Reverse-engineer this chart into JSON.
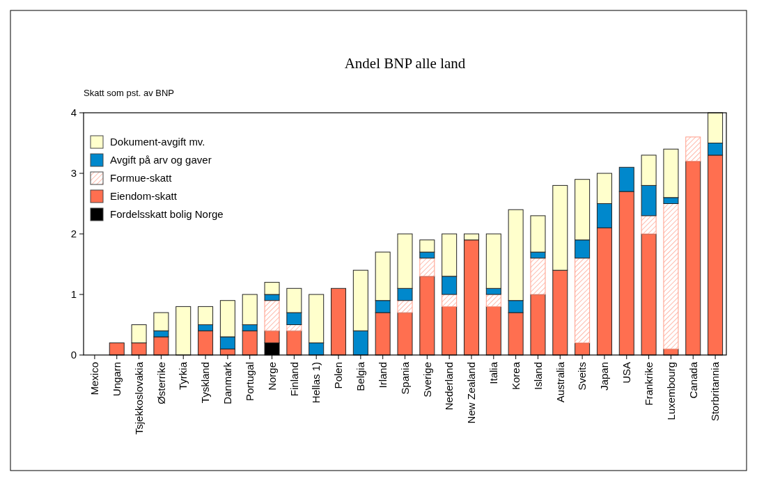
{
  "chart_data": {
    "type": "bar",
    "stacked": true,
    "title": "Andel BNP alle land",
    "ylabel": "Skatt som pst. av BNP",
    "categories": [
      "Mexico",
      "Ungarn",
      "Tsjekkoslovakia",
      "Østerrike",
      "Tyrkia",
      "Tyskland",
      "Danmark",
      "Portugal",
      "Norge",
      "Finland",
      "Hellas 1)",
      "Polen",
      "Belgia",
      "Irland",
      "Spania",
      "Sverige",
      "Nederland",
      "New Zealand",
      "Italia",
      "Korea",
      "Island",
      "Australia",
      "Sveits",
      "Japan",
      "USA",
      "Frankrike",
      "Luxembourg",
      "Canada",
      "Storbritannia"
    ],
    "series": [
      {
        "name": "Fordelsskatt bolig Norge",
        "color": "#000000",
        "values": [
          0,
          0,
          0,
          0,
          0,
          0,
          0,
          0,
          0.2,
          0,
          0,
          0,
          0,
          0,
          0,
          0,
          0,
          0,
          0,
          0,
          0,
          0,
          0,
          0,
          0,
          0,
          0,
          0,
          0
        ]
      },
      {
        "name": "Eiendom-skatt",
        "color": "#ff6f50",
        "values": [
          0,
          0.2,
          0.2,
          0.3,
          0,
          0.4,
          0.1,
          0.4,
          0.2,
          0.4,
          0,
          1.1,
          0,
          0.7,
          0.7,
          1.3,
          0.8,
          1.9,
          0.8,
          0.7,
          1.0,
          1.4,
          0.2,
          2.1,
          2.7,
          2.0,
          0.1,
          3.2,
          3.3
        ]
      },
      {
        "name": "Formue-skatt",
        "color": "#ff9c88",
        "values": [
          0,
          0,
          0,
          0,
          0,
          0,
          0,
          0,
          0.5,
          0.1,
          0,
          0,
          0,
          0,
          0.2,
          0.3,
          0.2,
          0,
          0.2,
          0,
          0.6,
          0,
          1.4,
          0,
          0,
          0.3,
          2.4,
          0.4,
          0
        ]
      },
      {
        "name": "Avgift på arv og gaver",
        "color": "#0088cc",
        "values": [
          0,
          0,
          0,
          0.1,
          0,
          0.1,
          0.2,
          0.1,
          0.1,
          0.2,
          0.2,
          0,
          0.4,
          0.2,
          0.2,
          0.1,
          0.3,
          0,
          0.1,
          0.2,
          0.1,
          0,
          0.3,
          0.4,
          0.4,
          0.5,
          0.1,
          0,
          0.2
        ]
      },
      {
        "name": "Dokument-avgift mv.",
        "color": "#ffffcc",
        "values": [
          0,
          0,
          0.3,
          0.3,
          0.8,
          0.3,
          0.6,
          0.5,
          0.2,
          0.4,
          0.8,
          0,
          1.0,
          0.8,
          0.9,
          0.2,
          0.7,
          0.1,
          0.9,
          1.5,
          0.6,
          1.4,
          1.0,
          0.5,
          0,
          0.5,
          0.8,
          0,
          0.5
        ]
      }
    ],
    "ylim": [
      0,
      4
    ],
    "yticks": [
      0,
      1,
      2,
      3,
      4
    ],
    "grid": false,
    "legend": "top left"
  }
}
